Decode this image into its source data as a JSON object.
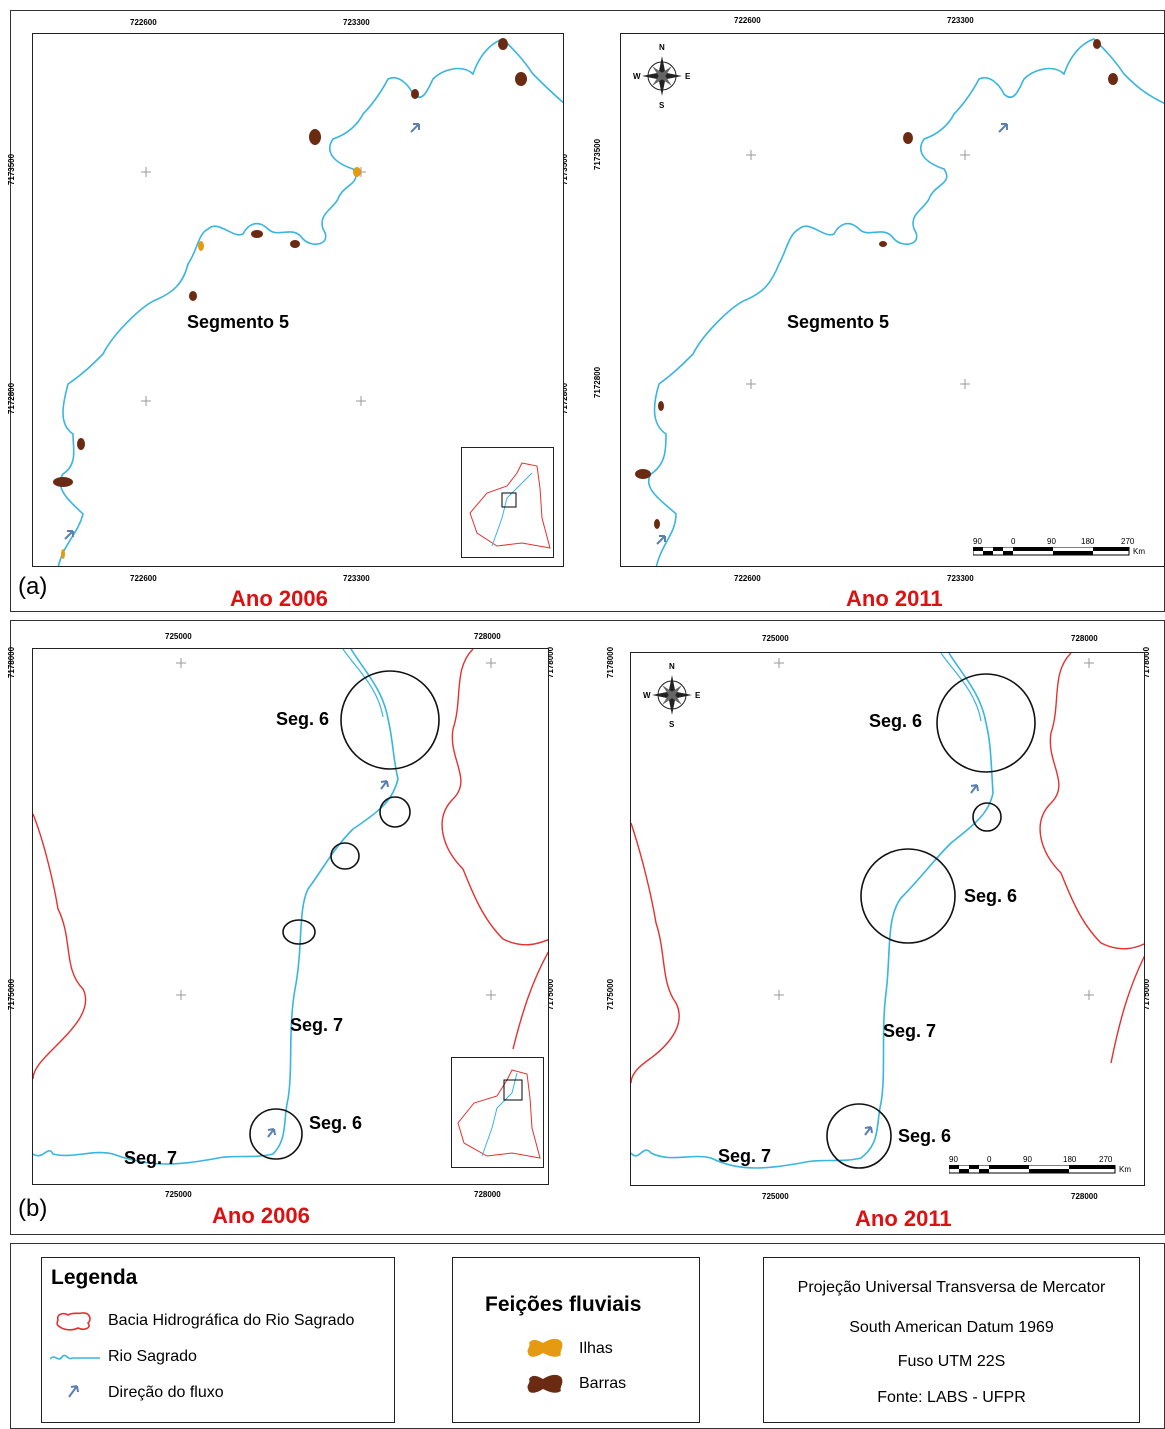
{
  "panel_a": {
    "label": "(a)",
    "left_map": {
      "year": "Ano 2006",
      "segment_label": "Segmento 5",
      "x_ticks": [
        "722600",
        "723300"
      ],
      "y_ticks": [
        "7173500",
        "7172800"
      ]
    },
    "right_map": {
      "year": "Ano 2011",
      "segment_label": "Segmento 5",
      "x_ticks": [
        "722600",
        "723300"
      ],
      "y_ticks": [
        "7173500",
        "7172800"
      ]
    }
  },
  "panel_b": {
    "label": "(b)",
    "left_map": {
      "year": "Ano 2006",
      "labels": [
        "Seg. 6",
        "Seg. 7",
        "Seg. 6",
        "Seg. 7"
      ],
      "x_ticks": [
        "725000",
        "728000"
      ],
      "y_ticks": [
        "7178000",
        "7175000"
      ]
    },
    "right_map": {
      "year": "Ano 2011",
      "labels": [
        "Seg. 6",
        "Seg. 6",
        "Seg. 7",
        "Seg. 6",
        "Seg. 7"
      ],
      "x_ticks": [
        "725000",
        "728000"
      ],
      "y_ticks": [
        "7178000",
        "7175000"
      ]
    }
  },
  "compass": {
    "n": "N",
    "s": "S",
    "e": "E",
    "w": "W"
  },
  "scale_bar": {
    "ticks": [
      "90",
      "0",
      "90",
      "180",
      "270"
    ],
    "unit": "Km"
  },
  "legend": {
    "title": "Legenda",
    "items": [
      {
        "label": "Bacia Hidrográfica do Rio Sagrado",
        "icon": "basin-outline-icon",
        "color": "#e53030"
      },
      {
        "label": "Rio Sagrado",
        "icon": "river-line-icon",
        "color": "#39b5e0"
      },
      {
        "label": "Direção do fluxo",
        "icon": "flow-arrow-icon",
        "color": "#5b7fb0"
      }
    ]
  },
  "features": {
    "title": "Feições fluviais",
    "items": [
      {
        "label": "Ilhas",
        "icon": "island-blob-icon",
        "color": "#e59a12"
      },
      {
        "label": "Barras",
        "icon": "bar-blob-icon",
        "color": "#6b2a12"
      }
    ]
  },
  "projection": {
    "lines": [
      "Projeção Universal Transversa de Mercator",
      "South American Datum 1969",
      "Fuso UTM 22S",
      "Fonte: LABS - UFPR"
    ]
  },
  "colors": {
    "river": "#39b5e0",
    "basin": "#e53030",
    "year_text": "#dd1111",
    "bars": "#6b2a12",
    "islands": "#e59a12"
  }
}
